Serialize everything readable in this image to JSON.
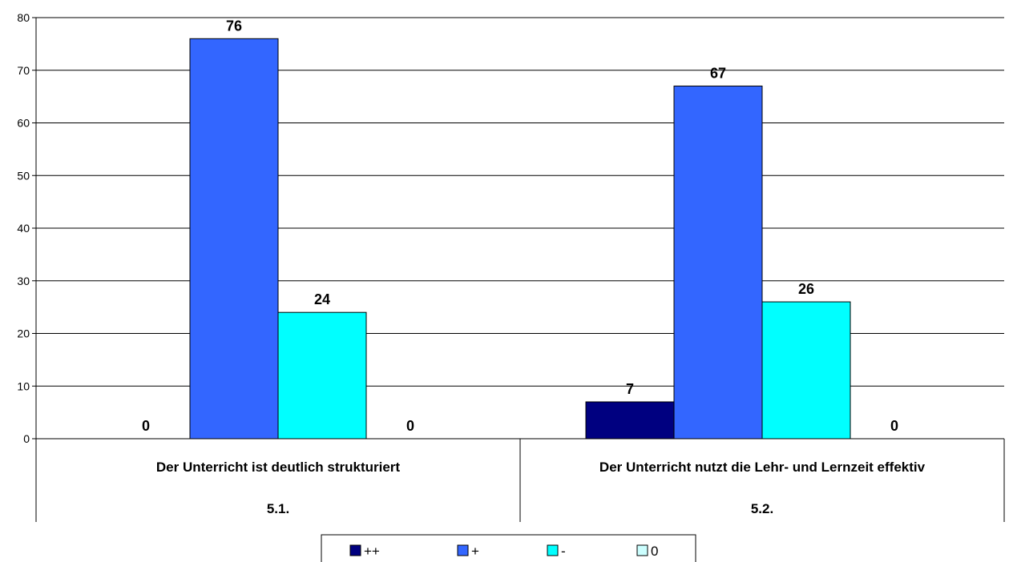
{
  "chart_data": {
    "type": "bar",
    "categories": [
      {
        "label": "Der Unterricht ist deutlich strukturiert",
        "code": "5.1."
      },
      {
        "label": "Der Unterricht nutzt die Lehr- und Lernzeit effektiv",
        "code": "5.2."
      }
    ],
    "series": [
      {
        "name": "++",
        "color": "#000080",
        "values": [
          0,
          7
        ]
      },
      {
        "name": "+",
        "color": "#3366FF",
        "values": [
          76,
          67
        ]
      },
      {
        "name": "-",
        "color": "#00FFFF",
        "values": [
          24,
          26
        ]
      },
      {
        "name": "0",
        "color": "#CCFFFF",
        "values": [
          0,
          0
        ]
      }
    ],
    "ylim": [
      0,
      80
    ],
    "yticks": [
      0,
      10,
      20,
      30,
      40,
      50,
      60,
      70,
      80
    ],
    "grid": true,
    "legend_position": "bottom",
    "data_labels": true
  }
}
